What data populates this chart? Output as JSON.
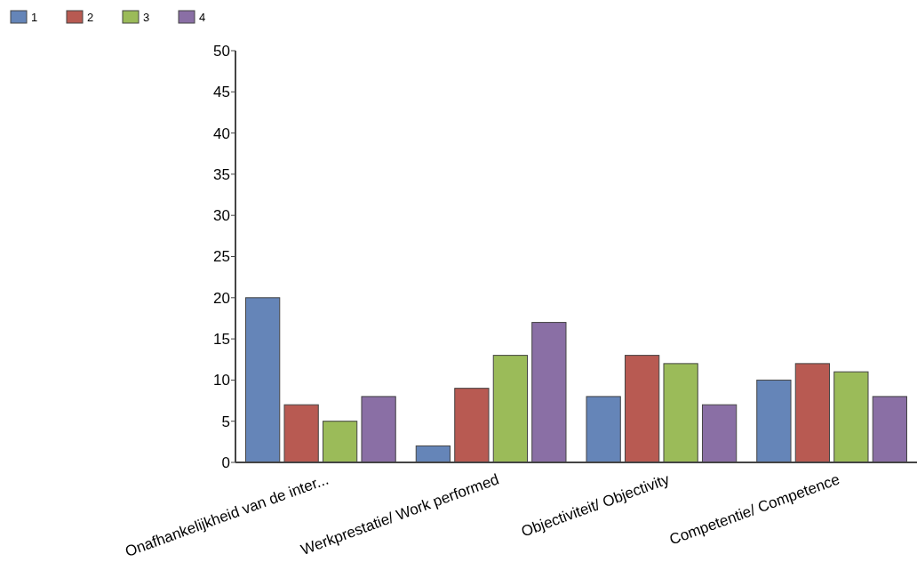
{
  "chart_data": {
    "type": "bar",
    "categories": [
      "Onafhankelijkheid van de inter...",
      "Werkprestatie/ Work performed",
      "Objectiviteit/ Objectivity",
      "Competentie/ Competence"
    ],
    "series": [
      {
        "name": "1",
        "color": "#6585b8",
        "values": [
          20,
          2,
          8,
          10
        ]
      },
      {
        "name": "2",
        "color": "#b85a52",
        "values": [
          7,
          9,
          13,
          12
        ]
      },
      {
        "name": "3",
        "color": "#9bbb59",
        "values": [
          5,
          13,
          12,
          11
        ]
      },
      {
        "name": "4",
        "color": "#8a6fa5",
        "values": [
          8,
          17,
          7,
          8
        ]
      }
    ],
    "ylim": [
      0,
      50
    ],
    "yticks": [
      0,
      5,
      10,
      15,
      20,
      25,
      30,
      35,
      40,
      45,
      50
    ],
    "grid": false,
    "legend": "top left"
  }
}
